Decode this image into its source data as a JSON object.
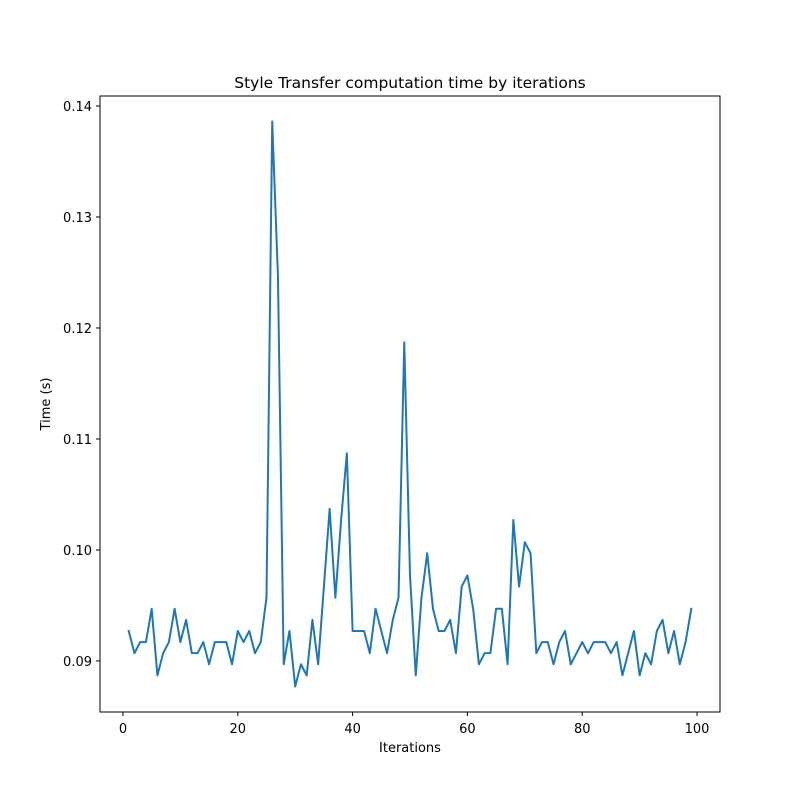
{
  "chart_data": {
    "type": "line",
    "title": "Style Transfer computation time by iterations",
    "xlabel": "Iterations",
    "ylabel": "Time (s)",
    "xlim": [
      -4,
      104
    ],
    "ylim": [
      0.0854,
      0.1409
    ],
    "xticks": [
      0,
      20,
      40,
      60,
      80,
      100
    ],
    "xtick_labels": [
      "0",
      "20",
      "40",
      "60",
      "80",
      "100"
    ],
    "yticks": [
      0.09,
      0.1,
      0.11,
      0.12,
      0.13,
      0.14
    ],
    "ytick_labels": [
      "0.09",
      "0.10",
      "0.11",
      "0.12",
      "0.13",
      "0.14"
    ],
    "grid": false,
    "line_color": "#1f77b4",
    "series": [
      {
        "x": [
          1,
          2,
          3,
          4,
          5,
          6,
          7,
          8,
          9,
          10,
          11,
          12,
          13,
          14,
          15,
          16,
          17,
          18,
          19,
          20,
          21,
          22,
          23,
          24,
          25,
          26,
          27,
          28,
          29,
          30,
          31,
          32,
          33,
          34,
          35,
          36,
          37,
          38,
          39,
          40,
          41,
          42,
          43,
          44,
          45,
          46,
          47,
          48,
          49,
          50,
          51,
          52,
          53,
          54,
          55,
          56,
          57,
          58,
          59,
          60,
          61,
          62,
          63,
          64,
          65,
          66,
          67,
          68,
          69,
          70,
          71,
          72,
          73,
          74,
          75,
          76,
          77,
          78,
          79,
          80,
          81,
          82,
          83,
          84,
          85,
          86,
          87,
          88,
          89,
          90,
          91,
          92,
          93,
          94,
          95,
          96,
          97,
          98,
          99
        ],
        "values": [
          0.0927,
          0.0907,
          0.0917,
          0.0917,
          0.0947,
          0.0887,
          0.0907,
          0.0917,
          0.0947,
          0.0917,
          0.0937,
          0.0907,
          0.0907,
          0.0917,
          0.0897,
          0.0917,
          0.0917,
          0.0917,
          0.0897,
          0.0927,
          0.0917,
          0.0927,
          0.0907,
          0.0917,
          0.0957,
          0.1386,
          0.1246,
          0.0897,
          0.0927,
          0.0877,
          0.0897,
          0.0887,
          0.0937,
          0.0897,
          0.0967,
          0.1037,
          0.0957,
          0.1027,
          0.1087,
          0.0927,
          0.0927,
          0.0927,
          0.0907,
          0.0947,
          0.0927,
          0.0907,
          0.0937,
          0.0957,
          0.1187,
          0.0977,
          0.0887,
          0.0957,
          0.0997,
          0.0947,
          0.0927,
          0.0927,
          0.0937,
          0.0907,
          0.0967,
          0.0977,
          0.0947,
          0.0897,
          0.0907,
          0.0907,
          0.0947,
          0.0947,
          0.0897,
          0.1027,
          0.0967,
          0.1007,
          0.0997,
          0.0907,
          0.0917,
          0.0917,
          0.0897,
          0.0917,
          0.0927,
          0.0897,
          0.0907,
          0.0917,
          0.0907,
          0.0917,
          0.0917,
          0.0917,
          0.0907,
          0.0917,
          0.0887,
          0.0907,
          0.0927,
          0.0887,
          0.0907,
          0.0897,
          0.0927,
          0.0937,
          0.0907,
          0.0927,
          0.0897,
          0.0917,
          0.0947
        ]
      }
    ]
  }
}
